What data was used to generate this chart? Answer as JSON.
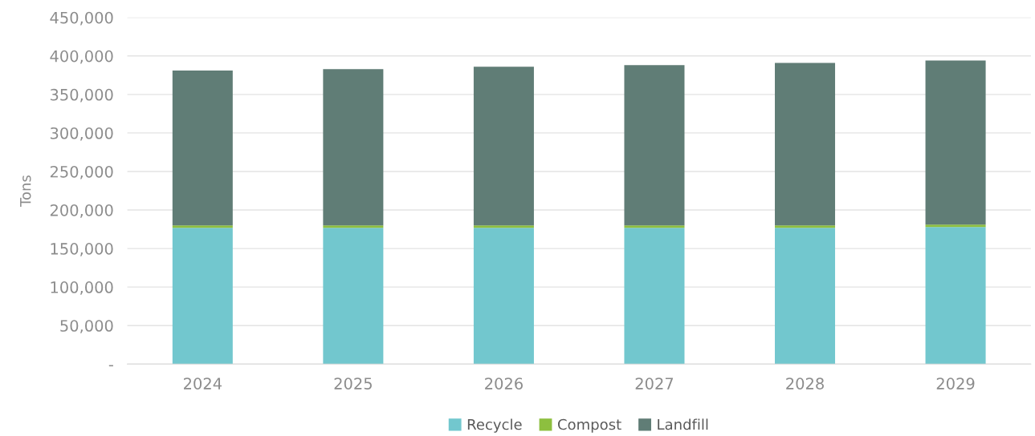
{
  "chart_data": {
    "type": "bar",
    "stacked": true,
    "ylabel": "Tons",
    "categories": [
      "2024",
      "2025",
      "2026",
      "2027",
      "2028",
      "2029"
    ],
    "series": [
      {
        "name": "Recycle",
        "color": "#72c7ce",
        "values": [
          177000,
          177000,
          177000,
          177000,
          177000,
          178000
        ]
      },
      {
        "name": "Compost",
        "color": "#8dbf3f",
        "values": [
          3000,
          3000,
          3000,
          3000,
          3000,
          3000
        ]
      },
      {
        "name": "Landfill",
        "color": "#607d76",
        "values": [
          201000,
          203000,
          206000,
          208000,
          211000,
          213000
        ]
      }
    ],
    "ylim": [
      0,
      450000
    ],
    "yticks": [
      {
        "value": 0,
        "label": "-"
      },
      {
        "value": 50000,
        "label": "50,000"
      },
      {
        "value": 100000,
        "label": "100,000"
      },
      {
        "value": 150000,
        "label": "150,000"
      },
      {
        "value": 200000,
        "label": "200,000"
      },
      {
        "value": 250000,
        "label": "250,000"
      },
      {
        "value": 300000,
        "label": "300,000"
      },
      {
        "value": 350000,
        "label": "350,000"
      },
      {
        "value": 400000,
        "label": "400,000"
      },
      {
        "value": 450000,
        "label": "450,000"
      }
    ],
    "grid": "y",
    "legend": "bottom"
  }
}
